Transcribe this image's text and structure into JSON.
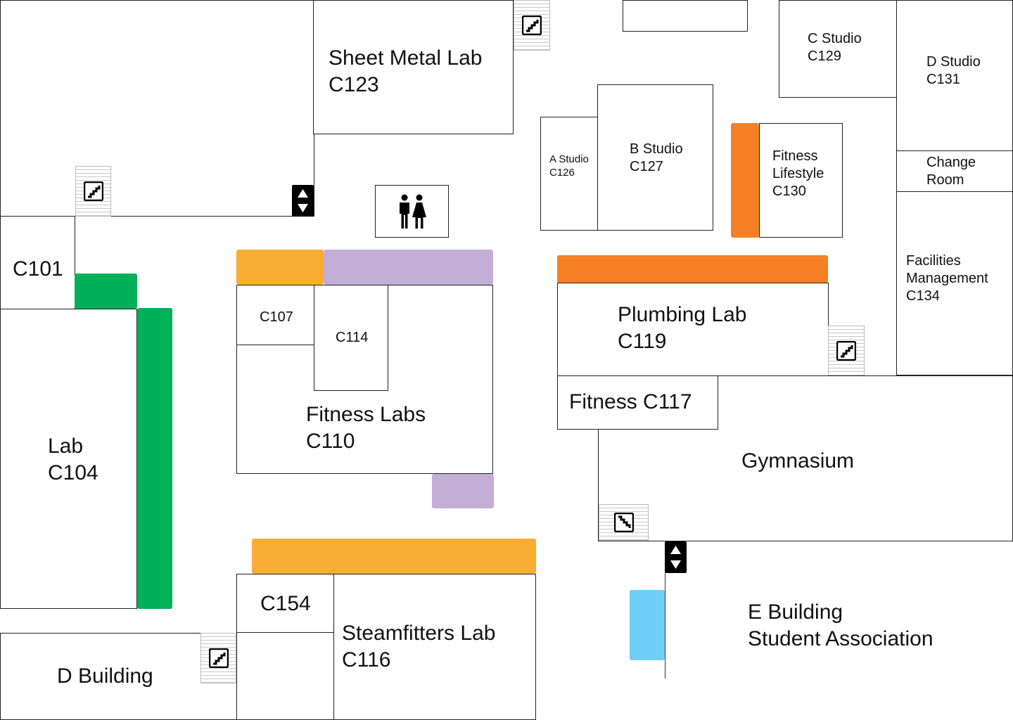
{
  "rooms": {
    "top_left": "",
    "sheet_metal_lab": "Sheet Metal Lab\nC123",
    "top_center_box": "",
    "c_studio": "C Studio\nC129",
    "d_studio": "D Studio\nC131",
    "a_studio": "A Studio\nC126",
    "b_studio": "B Studio\nC127",
    "fitness_lifestyle": "Fitness\nLifestyle\nC130",
    "change_room": "Change\nRoom",
    "facilities_management": "Facilities\nManagement\nC134",
    "c101": "C101",
    "c107": "C107",
    "c114": "C114",
    "fitness_labs": "Fitness Labs\nC110",
    "plumbing_lab": "Plumbing Lab\nC119",
    "fitness_c117": "Fitness C117",
    "gymnasium": "Gymnasium",
    "lab_c104": "Lab\nC104",
    "c154": "C154",
    "steamfitters_lab": "Steamfitters Lab\nC116",
    "d_building": "D Building",
    "e_building": "E Building\nStudent Association"
  },
  "colors": {
    "orange": "#f58025",
    "yellow": "#f9ae33",
    "purple": "#c3aed6",
    "green": "#00b15a",
    "blue": "#6fcff6"
  },
  "icons": [
    "stairs-up-icon",
    "stairs-down-icon",
    "elevator-icon",
    "restroom-icon"
  ]
}
